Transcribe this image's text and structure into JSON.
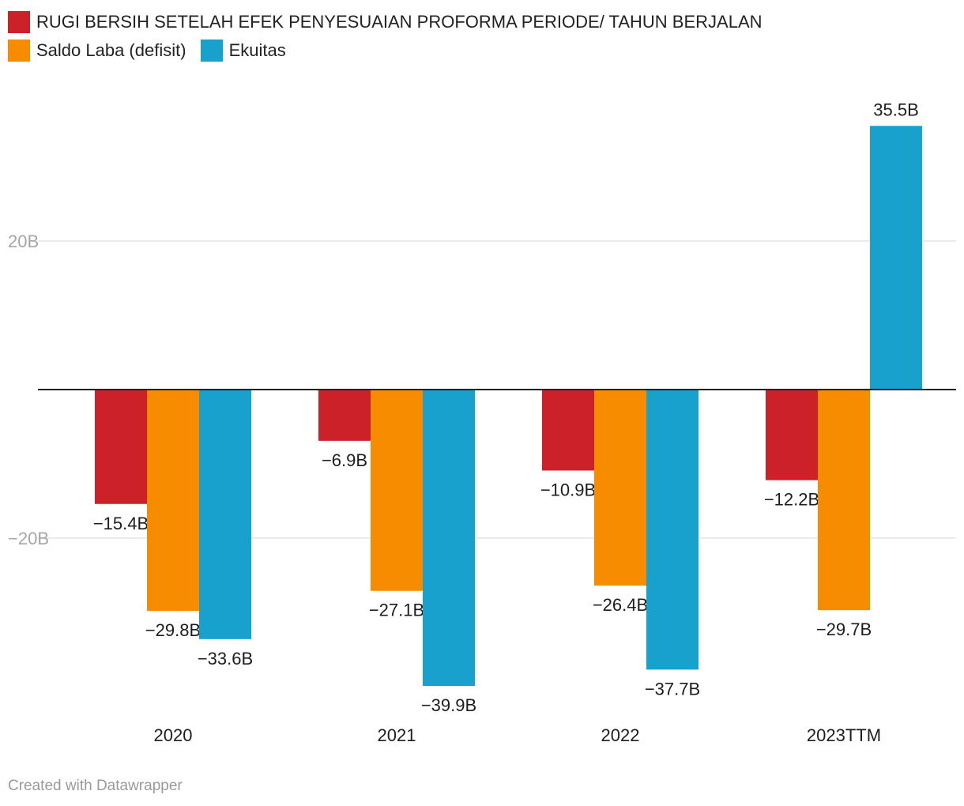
{
  "chart_data": {
    "type": "bar",
    "categories": [
      "2020",
      "2021",
      "2022",
      "2023TTM"
    ],
    "series": [
      {
        "name": "RUGI BERSIH SETELAH EFEK PENYESUAIAN PROFORMA PERIODE/ TAHUN BERJALAN",
        "color": "#cc2128",
        "values": [
          -15.4,
          -6.9,
          -10.9,
          -12.2
        ],
        "labels": [
          "−15.4B",
          "−6.9B",
          "−10.9B",
          "−12.2B"
        ]
      },
      {
        "name": "Saldo Laba (defisit)",
        "color": "#f88c01",
        "values": [
          -29.8,
          -27.1,
          -26.4,
          -29.7
        ],
        "labels": [
          "−29.8B",
          "−27.1B",
          "−26.4B",
          "−29.7B"
        ]
      },
      {
        "name": "Ekuitas",
        "color": "#18a1cd",
        "values": [
          -33.6,
          -39.9,
          -37.7,
          35.5
        ],
        "labels": [
          "−33.6B",
          "−39.9B",
          "−37.7B",
          "35.5B"
        ]
      }
    ],
    "y_ticks": [
      {
        "value": 20,
        "label": "20B"
      },
      {
        "value": -20,
        "label": "−20B"
      }
    ],
    "ylim": [
      -44,
      38
    ],
    "grid": true,
    "legend_position": "top-left"
  },
  "footer": {
    "credit": "Created with Datawrapper"
  }
}
